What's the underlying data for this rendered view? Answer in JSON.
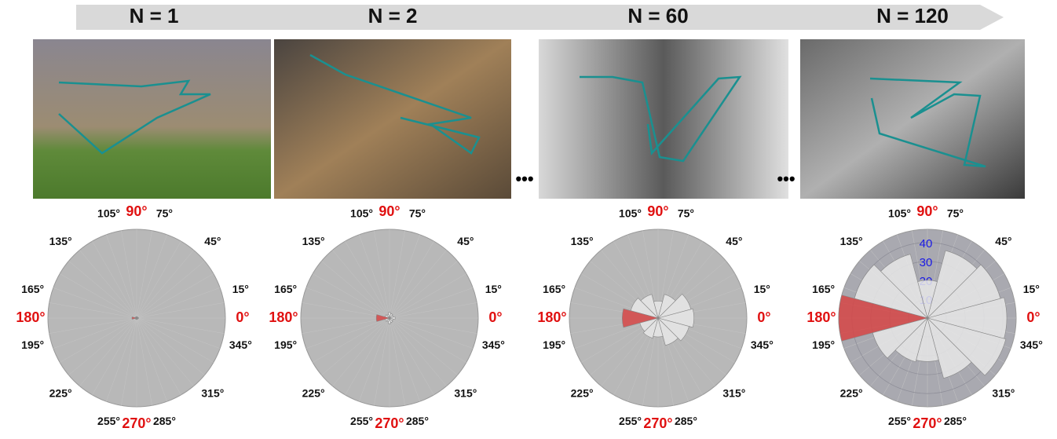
{
  "ellipses": [
    "•••",
    "•••"
  ],
  "chart_data": [
    {
      "type": "polar-bar",
      "title": "N = 1",
      "x": [
        0,
        30,
        60,
        90,
        120,
        150,
        180,
        210,
        240,
        270,
        300,
        330
      ],
      "values": [
        1,
        0.8,
        0.6,
        0.8,
        0.6,
        0.8,
        2.5,
        0.8,
        0.6,
        0.8,
        0.6,
        0.8
      ],
      "colors": [
        "#e8e8e8",
        "#e8e8e8",
        "#e8e8e8",
        "#e8e8e8",
        "#e8e8e8",
        "#e8e8e8",
        "#d64545",
        "#e8e8e8",
        "#e8e8e8",
        "#e8e8e8",
        "#e8e8e8",
        "#e8e8e8"
      ],
      "ylim": [
        0,
        47
      ],
      "background": "#b8b8b8",
      "grid": false,
      "xticks": [
        {
          "value": 0,
          "label": "0°",
          "color": "#e01010"
        },
        {
          "value": 15,
          "label": "15°"
        },
        {
          "value": 45,
          "label": "45°"
        },
        {
          "value": 75,
          "label": "75°"
        },
        {
          "value": 90,
          "label": "90°",
          "color": "#e01010"
        },
        {
          "value": 105,
          "label": "105°"
        },
        {
          "value": 135,
          "label": "135°"
        },
        {
          "value": 165,
          "label": "165°"
        },
        {
          "value": 180,
          "label": "180°",
          "color": "#e01010"
        },
        {
          "value": 195,
          "label": "195°"
        },
        {
          "value": 225,
          "label": "225°"
        },
        {
          "value": 255,
          "label": "255°"
        },
        {
          "value": 270,
          "label": "270°",
          "color": "#e01010"
        },
        {
          "value": 285,
          "label": "285°"
        },
        {
          "value": 315,
          "label": "315°"
        },
        {
          "value": 345,
          "label": "345°"
        }
      ]
    },
    {
      "type": "polar-bar",
      "title": "N = 2",
      "x": [
        0,
        30,
        60,
        90,
        120,
        150,
        180,
        210,
        240,
        270,
        300,
        330
      ],
      "values": [
        3,
        2,
        2.5,
        3,
        2,
        2.5,
        7,
        2.5,
        2,
        3,
        2.5,
        2
      ],
      "colors": [
        "#e8e8e8",
        "#e8e8e8",
        "#e8e8e8",
        "#e8e8e8",
        "#e8e8e8",
        "#e8e8e8",
        "#d64545",
        "#e8e8e8",
        "#e8e8e8",
        "#e8e8e8",
        "#e8e8e8",
        "#e8e8e8"
      ],
      "ylim": [
        0,
        47
      ],
      "background": "#b8b8b8",
      "grid": false,
      "xticks": [
        {
          "value": 0,
          "label": "0°",
          "color": "#e01010"
        },
        {
          "value": 15,
          "label": "15°"
        },
        {
          "value": 45,
          "label": "45°"
        },
        {
          "value": 75,
          "label": "75°"
        },
        {
          "value": 90,
          "label": "90°",
          "color": "#e01010"
        },
        {
          "value": 105,
          "label": "105°"
        },
        {
          "value": 135,
          "label": "135°"
        },
        {
          "value": 165,
          "label": "165°"
        },
        {
          "value": 180,
          "label": "180°",
          "color": "#e01010"
        },
        {
          "value": 195,
          "label": "195°"
        },
        {
          "value": 225,
          "label": "225°"
        },
        {
          "value": 255,
          "label": "255°"
        },
        {
          "value": 270,
          "label": "270°",
          "color": "#e01010"
        },
        {
          "value": 285,
          "label": "285°"
        },
        {
          "value": 315,
          "label": "315°"
        },
        {
          "value": 345,
          "label": "345°"
        }
      ]
    },
    {
      "type": "polar-bar",
      "title": "N = 60",
      "x": [
        0,
        30,
        60,
        90,
        120,
        150,
        180,
        210,
        240,
        270,
        300,
        330
      ],
      "values": [
        19,
        18,
        13,
        9,
        13,
        15,
        19,
        10,
        11,
        10,
        15,
        17
      ],
      "colors": [
        "#e8e8e8",
        "#e8e8e8",
        "#e8e8e8",
        "#e8e8e8",
        "#e8e8e8",
        "#e8e8e8",
        "#d64545",
        "#e8e8e8",
        "#e8e8e8",
        "#e8e8e8",
        "#e8e8e8",
        "#e8e8e8"
      ],
      "ylim": [
        0,
        47
      ],
      "background": "#b8b8b8",
      "grid": false,
      "xticks": [
        {
          "value": 0,
          "label": "0°",
          "color": "#e01010"
        },
        {
          "value": 15,
          "label": "15°"
        },
        {
          "value": 45,
          "label": "45°"
        },
        {
          "value": 75,
          "label": "75°"
        },
        {
          "value": 90,
          "label": "90°",
          "color": "#e01010"
        },
        {
          "value": 105,
          "label": "105°"
        },
        {
          "value": 135,
          "label": "135°"
        },
        {
          "value": 165,
          "label": "165°"
        },
        {
          "value": 180,
          "label": "180°",
          "color": "#e01010"
        },
        {
          "value": 195,
          "label": "195°"
        },
        {
          "value": 225,
          "label": "225°"
        },
        {
          "value": 255,
          "label": "255°"
        },
        {
          "value": 270,
          "label": "270°",
          "color": "#e01010"
        },
        {
          "value": 285,
          "label": "285°"
        },
        {
          "value": 315,
          "label": "315°"
        },
        {
          "value": 345,
          "label": "345°"
        }
      ]
    },
    {
      "type": "polar-bar",
      "title": "N = 120",
      "x": [
        0,
        30,
        60,
        90,
        120,
        150,
        180,
        210,
        240,
        270,
        300,
        330
      ],
      "values": [
        42,
        40,
        37,
        20,
        35,
        40,
        47,
        30,
        24,
        23,
        33,
        43
      ],
      "colors": [
        "#e8e8e8",
        "#e8e8e8",
        "#e8e8e8",
        "#e8e8e8",
        "#e8e8e8",
        "#e8e8e8",
        "#d64545",
        "#e8e8e8",
        "#e8e8e8",
        "#e8e8e8",
        "#e8e8e8",
        "#e8e8e8"
      ],
      "ylim": [
        0,
        47
      ],
      "background": "#a9a9b0",
      "grid": true,
      "yticks": [
        10,
        20,
        30,
        40
      ],
      "ytick_color": "#1a1ae6",
      "xticks": [
        {
          "value": 0,
          "label": "0°",
          "color": "#e01010"
        },
        {
          "value": 15,
          "label": "15°"
        },
        {
          "value": 45,
          "label": "45°"
        },
        {
          "value": 75,
          "label": "75°"
        },
        {
          "value": 90,
          "label": "90°",
          "color": "#e01010"
        },
        {
          "value": 105,
          "label": "105°"
        },
        {
          "value": 135,
          "label": "135°"
        },
        {
          "value": 165,
          "label": "165°"
        },
        {
          "value": 180,
          "label": "180°",
          "color": "#e01010"
        },
        {
          "value": 195,
          "label": "195°"
        },
        {
          "value": 225,
          "label": "225°"
        },
        {
          "value": 255,
          "label": "255°"
        },
        {
          "value": 270,
          "label": "270°",
          "color": "#e01010"
        },
        {
          "value": 285,
          "label": "285°"
        },
        {
          "value": 315,
          "label": "315°"
        },
        {
          "value": 345,
          "label": "345°"
        }
      ]
    }
  ]
}
